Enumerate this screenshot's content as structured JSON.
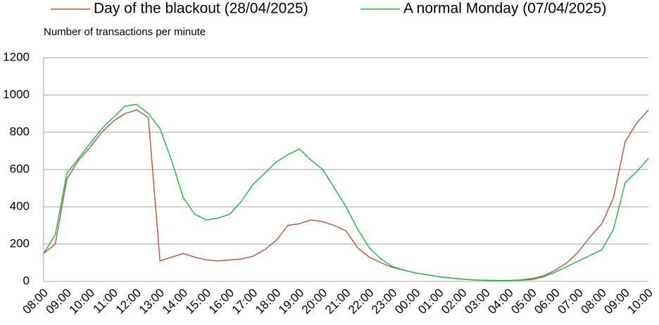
{
  "chart_data": {
    "type": "line",
    "ylabel": "Number of transactions per minute",
    "categories": [
      "08:00",
      null,
      "09:00",
      null,
      "10:00",
      null,
      "11:00",
      null,
      "12:00",
      null,
      "13:00",
      null,
      "14:00",
      null,
      "15:00",
      null,
      "16:00",
      null,
      "17:00",
      null,
      "18:00",
      null,
      "19:00",
      null,
      "20:00",
      null,
      "21:00",
      null,
      "22:00",
      null,
      "23:00",
      null,
      "00:00",
      null,
      "01:00",
      null,
      "02:00",
      null,
      "03:00",
      null,
      "04:00",
      null,
      "05:00",
      null,
      "06:00",
      null,
      "07:00",
      null,
      "08:00",
      null,
      "09:00",
      null,
      "10:00"
    ],
    "series": [
      {
        "name": "Day of the blackout (28/04/2025)",
        "color": "#b5533c",
        "values": [
          150,
          200,
          550,
          650,
          720,
          800,
          860,
          900,
          920,
          880,
          110,
          130,
          150,
          130,
          115,
          110,
          115,
          120,
          135,
          170,
          220,
          300,
          310,
          330,
          320,
          300,
          270,
          180,
          130,
          100,
          75,
          60,
          45,
          35,
          25,
          18,
          12,
          8,
          6,
          5,
          5,
          8,
          15,
          30,
          60,
          100,
          160,
          240,
          310,
          450,
          750,
          850,
          920
        ]
      },
      {
        "name": "A normal Monday (07/04/2025)",
        "color": "#1db34a",
        "values": [
          150,
          250,
          580,
          660,
          740,
          820,
          880,
          940,
          950,
          900,
          820,
          650,
          450,
          360,
          330,
          340,
          360,
          430,
          520,
          580,
          640,
          680,
          710,
          650,
          600,
          500,
          400,
          280,
          180,
          120,
          80,
          60,
          45,
          35,
          25,
          18,
          12,
          8,
          6,
          5,
          5,
          6,
          10,
          25,
          50,
          80,
          110,
          140,
          170,
          280,
          530,
          590,
          660
        ]
      }
    ],
    "ylim": [
      0,
      1200
    ],
    "yticks": [
      0,
      200,
      400,
      600,
      800,
      1000,
      1200
    ],
    "grid": true
  }
}
